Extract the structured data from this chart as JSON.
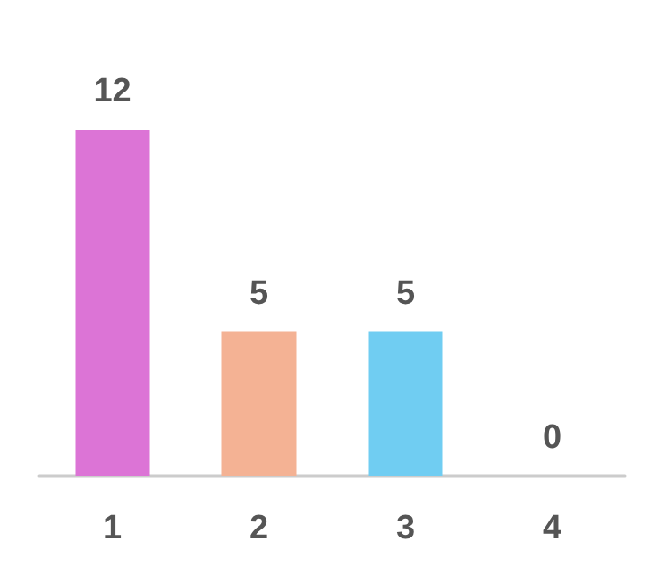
{
  "chart_data": {
    "type": "bar",
    "categories": [
      "1",
      "2",
      "3",
      "4"
    ],
    "values": [
      12,
      5,
      5,
      0
    ],
    "colors": [
      "#dc74d6",
      "#f4b294",
      "#70cdf2",
      "#c8c8c8"
    ],
    "data_labels": true
  }
}
